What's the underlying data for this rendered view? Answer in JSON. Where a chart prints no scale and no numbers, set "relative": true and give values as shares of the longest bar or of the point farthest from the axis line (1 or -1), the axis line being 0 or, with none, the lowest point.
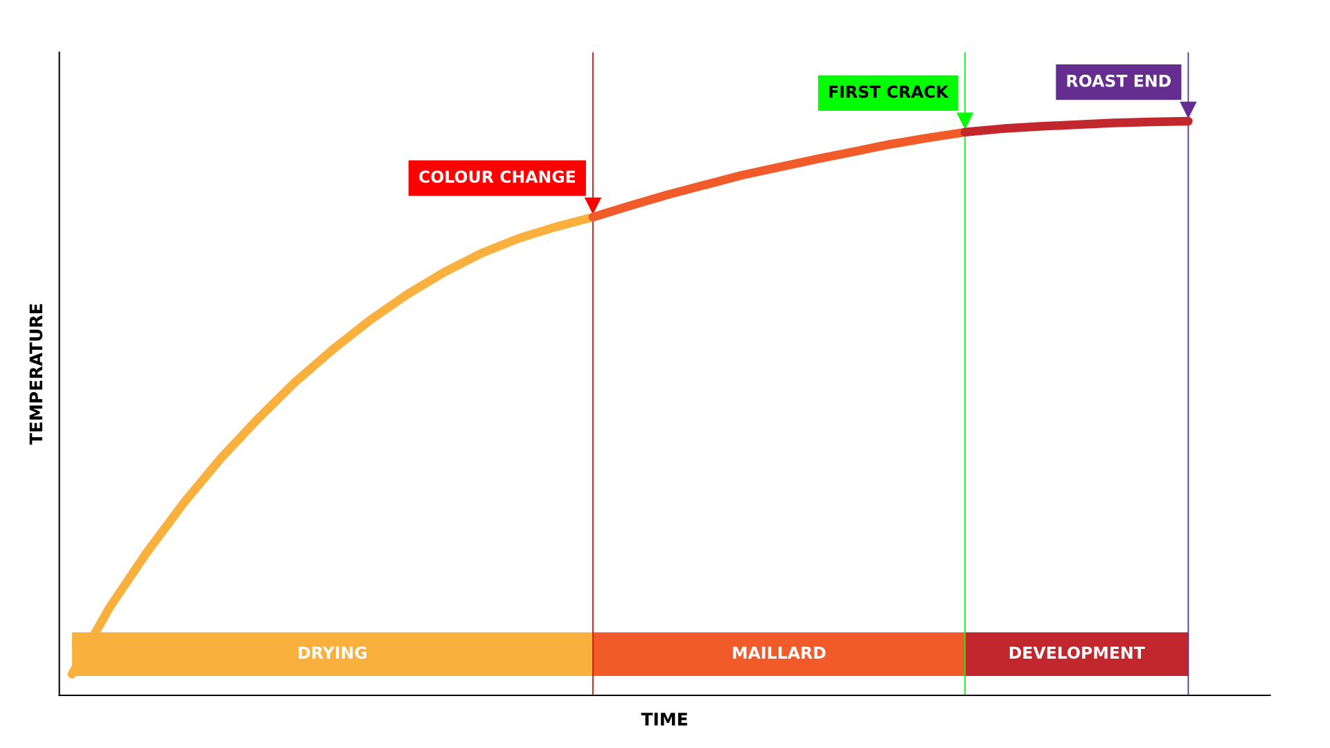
{
  "chart_data": {
    "type": "line",
    "relative": true,
    "xlabel": "TIME",
    "ylabel": "TEMPERATURE",
    "categories": [
      null,
      null,
      null,
      null,
      null,
      null,
      null,
      null,
      null,
      null,
      null,
      null,
      null,
      null,
      null,
      null,
      null,
      null,
      null,
      null,
      null,
      null,
      null,
      null,
      null,
      null,
      null,
      null,
      null,
      null,
      null
    ],
    "series": [
      {
        "name": "DRYING",
        "color": "#f9b03d",
        "values": [
          0.037,
          0.152,
          0.248,
          0.335,
          0.413,
          0.482,
          0.546,
          0.602,
          0.653,
          0.698,
          0.737,
          0.77,
          0.796,
          0.816,
          0.833,
          null,
          null,
          null,
          null,
          null,
          null,
          null,
          null,
          null,
          null,
          null,
          null,
          null,
          null,
          null,
          null
        ]
      },
      {
        "name": "MAILLARD",
        "color": "#f15a29",
        "values": [
          null,
          null,
          null,
          null,
          null,
          null,
          null,
          null,
          null,
          null,
          null,
          null,
          null,
          null,
          0.833,
          0.853,
          0.872,
          0.889,
          0.906,
          0.92,
          0.934,
          0.947,
          0.96,
          0.971,
          0.981,
          null,
          null,
          null,
          null,
          null,
          null
        ]
      },
      {
        "name": "DEVELOPMENT",
        "color": "#c1272d",
        "values": [
          null,
          null,
          null,
          null,
          null,
          null,
          null,
          null,
          null,
          null,
          null,
          null,
          null,
          null,
          null,
          null,
          null,
          null,
          null,
          null,
          null,
          null,
          null,
          null,
          0.981,
          0.987,
          0.991,
          0.994,
          0.997,
          0.999,
          1.0
        ]
      }
    ],
    "annotations": [
      "COLOUR CHANGE",
      "FIRST CRACK",
      "ROAST END"
    ],
    "marker": "none",
    "line_style": "solid"
  }
}
